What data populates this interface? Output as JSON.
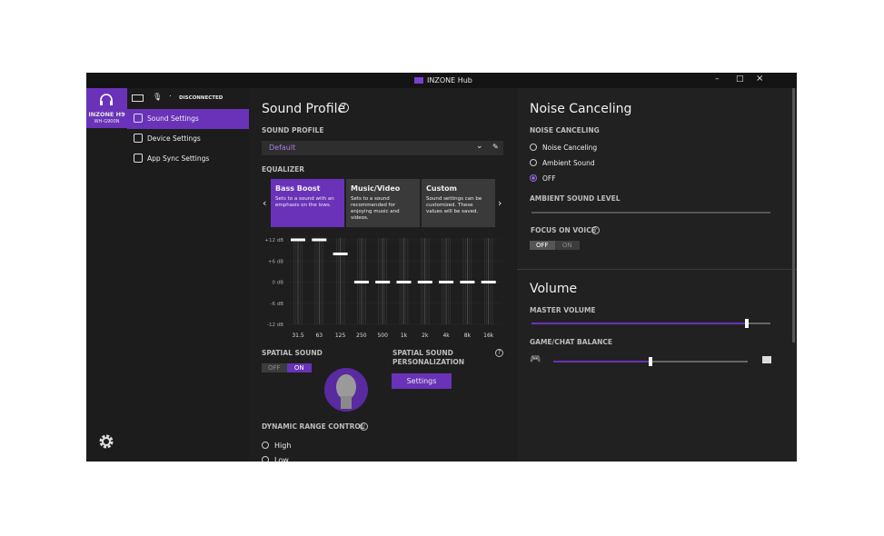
{
  "window": {
    "title": "INZONE Hub"
  },
  "sidebar": {
    "device": {
      "name": "INZONE H9",
      "model": "WH-G900N"
    },
    "status": "DISCONNECTED",
    "nav": [
      "Sound Settings",
      "Device Settings",
      "App Sync Settings"
    ],
    "selected_nav": 0
  },
  "sound_profile": {
    "title": "Sound Profile",
    "profile_label": "SOUND PROFILE",
    "profile": "Default",
    "equalizer_label": "EQUALIZER",
    "presets": [
      {
        "name": "Bass Boost",
        "description": "Sets to a sound with an emphasis on the lows."
      },
      {
        "name": "Music/Video",
        "description": "Sets to a sound recommended for enjoying music and videos."
      },
      {
        "name": "Custom",
        "description": "Sound settings can be customized. These values will be saved."
      }
    ],
    "selected_preset": 0,
    "eq": {
      "bands": [
        "31.5",
        "63",
        "125",
        "250",
        "500",
        "1k",
        "2k",
        "4k",
        "8k",
        "16k"
      ],
      "values": [
        12,
        12,
        8,
        0,
        0,
        0,
        0,
        0,
        0,
        0
      ],
      "ylim": [
        -12,
        12
      ],
      "yticks": [
        {
          "value": 12,
          "label": "+12 dB"
        },
        {
          "value": 6,
          "label": "+6 dB"
        },
        {
          "value": 0,
          "label": "0 dB"
        },
        {
          "value": -6,
          "label": "-6 dB"
        },
        {
          "value": -12,
          "label": "-12 dB"
        }
      ]
    },
    "spatial_sound": {
      "label": "SPATIAL SOUND",
      "off": "OFF",
      "on": "ON",
      "enabled": true
    },
    "personalization": {
      "label": "SPATIAL SOUND PERSONALIZATION",
      "button": "Settings"
    },
    "drc": {
      "label": "DYNAMIC RANGE CONTROL",
      "options": [
        "High",
        "Low"
      ]
    }
  },
  "noise_canceling": {
    "title": "Noise Canceling",
    "label": "NOISE CANCELING",
    "options": [
      "Noise Canceling",
      "Ambient Sound",
      "OFF"
    ],
    "selected": 2,
    "ambient_label": "AMBIENT SOUND LEVEL",
    "focus_label": "FOCUS ON VOICE",
    "focus_off": "OFF",
    "focus_on": "ON",
    "focus_enabled": false
  },
  "volume": {
    "title": "Volume",
    "master_label": "MASTER VOLUME",
    "master": 90,
    "balance_label": "GAME/CHAT BALANCE",
    "balance": 50
  }
}
